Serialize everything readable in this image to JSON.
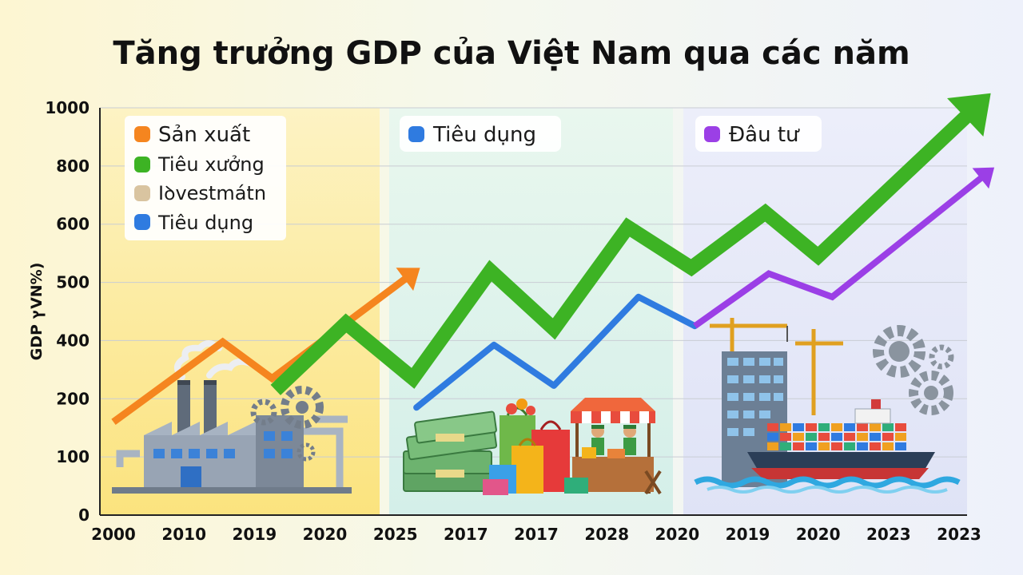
{
  "chart_data": {
    "type": "line",
    "title": "Tăng trưởng GDP của Việt Nam qua các năm",
    "ylabel": "GDP ץVN%)",
    "xlabel": "",
    "x_ticks": [
      "2000",
      "2010",
      "2019",
      "2020",
      "2025",
      "2017",
      "2017",
      "2028",
      "2020",
      "2019",
      "2020",
      "2023",
      "2023"
    ],
    "y_ticks": [
      0,
      100,
      200,
      400,
      500,
      600,
      800,
      1000
    ],
    "grid": true,
    "legend_position": "top-left",
    "legend": [
      "Sản xuất",
      "Tiêu xưởng",
      "Iꝺvestmátn",
      "Tiêu dụng"
    ],
    "section_labels": [
      "Tiêu dụng",
      "Đâu tư"
    ],
    "series": [
      {
        "name": "Sản xuất",
        "color": "#f5851f",
        "points": [
          [
            0,
            160
          ],
          [
            1.55,
            395
          ],
          [
            2.25,
            270
          ],
          [
            4.35,
            525
          ]
        ]
      },
      {
        "name": "Tiêu xưởng",
        "color": "#3db324",
        "points": [
          [
            2.3,
            230
          ],
          [
            3.3,
            430
          ],
          [
            4.25,
            270
          ],
          [
            5.35,
            520
          ],
          [
            6.25,
            420
          ],
          [
            7.3,
            595
          ],
          [
            8.2,
            525
          ],
          [
            9.25,
            640
          ],
          [
            10.0,
            545
          ],
          [
            12.45,
            1050
          ]
        ]
      },
      {
        "name": "Tiêu dụng",
        "color": "#2f7be0",
        "points": [
          [
            4.3,
            185
          ],
          [
            5.4,
            385
          ],
          [
            6.25,
            245
          ],
          [
            7.45,
            475
          ],
          [
            8.25,
            425
          ]
        ]
      },
      {
        "name": "Đâu tư",
        "color": "#9b3fe6",
        "points": [
          [
            8.25,
            425
          ],
          [
            9.3,
            515
          ],
          [
            10.2,
            475
          ],
          [
            12.5,
            795
          ]
        ]
      }
    ]
  },
  "colors": {
    "legend_investment_dot": "#d9c4a0",
    "section_1_bg": "#fcec9c",
    "section_2_bg": "#d8f0ea",
    "section_3_bg": "#e4e6f6"
  },
  "icons": [
    "factory-icon",
    "money-icon",
    "shopping-bags-icon",
    "market-stall-icon",
    "skyscraper-crane-icon",
    "cargo-ship-icon",
    "gears-icon"
  ]
}
